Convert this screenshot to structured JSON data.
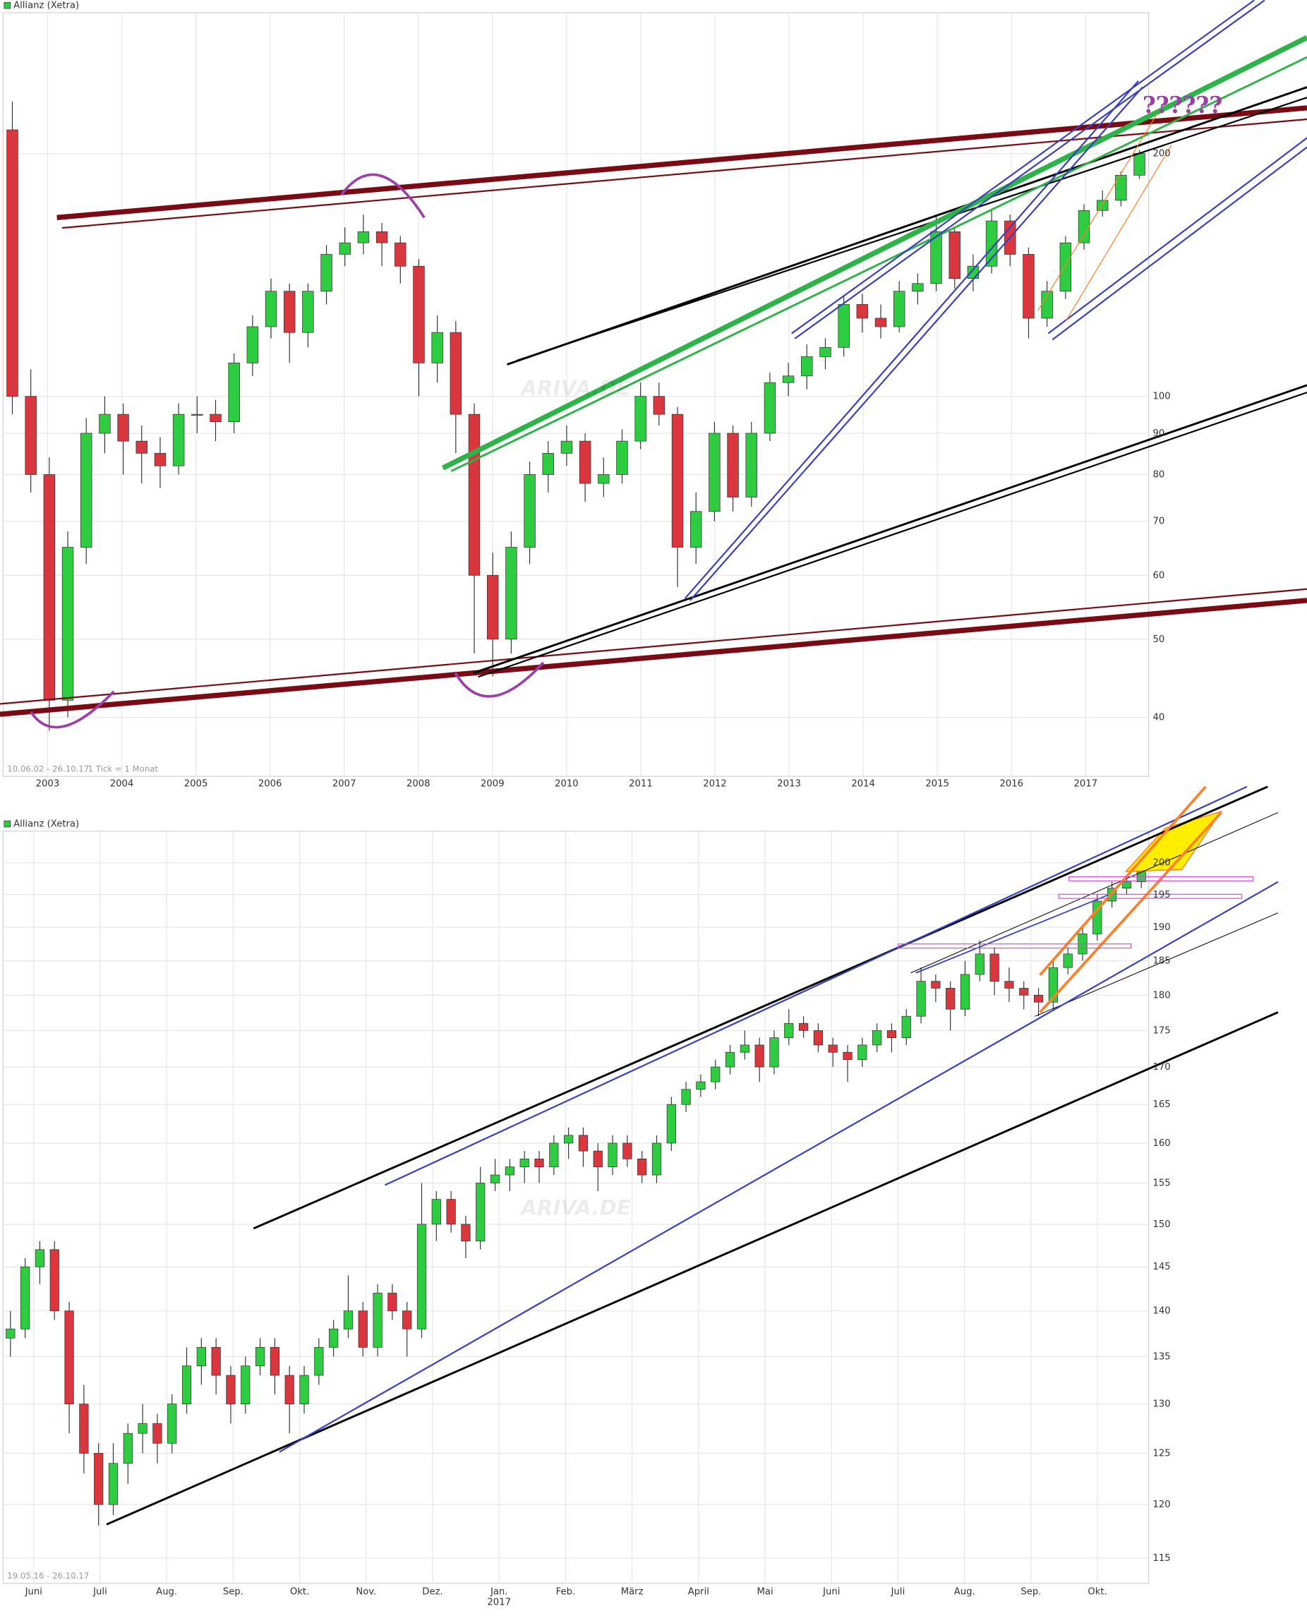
{
  "chart_data": [
    {
      "type": "candlestick",
      "series": [
        {
          "name": "Allianz (Xetra)",
          "color": "#2ecc40",
          "down_color": "#d9363e",
          "values": [
            [
              214,
              232,
              95,
              100
            ],
            [
              100,
              108,
              76,
              80
            ],
            [
              80,
              84,
              38.5,
              42
            ],
            [
              42,
              68,
              40,
              65
            ],
            [
              65,
              94,
              62,
              90
            ],
            [
              90,
              100,
              85,
              95
            ],
            [
              95,
              98,
              80,
              88
            ],
            [
              88,
              92,
              78,
              85
            ],
            [
              85,
              89,
              77,
              82
            ],
            [
              82,
              98,
              80,
              95
            ],
            [
              95,
              100,
              90,
              95
            ],
            [
              95,
              99,
              88,
              93
            ],
            [
              93,
              113,
              90,
              110
            ],
            [
              110,
              126,
              106,
              122
            ],
            [
              122,
              140,
              118,
              135
            ],
            [
              135,
              138,
              110,
              120
            ],
            [
              120,
              138,
              115,
              135
            ],
            [
              135,
              154,
              130,
              150
            ],
            [
              150,
              162,
              145,
              155
            ],
            [
              155,
              168,
              150,
              160
            ],
            [
              160,
              164,
              145,
              155
            ],
            [
              155,
              158,
              138,
              145
            ],
            [
              145,
              148,
              100,
              110
            ],
            [
              110,
              126,
              104,
              120
            ],
            [
              120,
              124,
              85,
              95
            ],
            [
              95,
              98,
              48,
              60
            ],
            [
              60,
              64,
              45,
              50
            ],
            [
              50,
              68,
              48,
              65
            ],
            [
              65,
              83,
              62,
              80
            ],
            [
              80,
              88,
              76,
              85
            ],
            [
              85,
              92,
              82,
              88
            ],
            [
              88,
              90,
              74,
              78
            ],
            [
              78,
              84,
              75,
              80
            ],
            [
              80,
              91,
              78,
              88
            ],
            [
              88,
              104,
              86,
              100
            ],
            [
              100,
              104,
              92,
              95
            ],
            [
              95,
              97,
              58,
              65
            ],
            [
              65,
              76,
              62,
              72
            ],
            [
              72,
              93,
              70,
              90
            ],
            [
              90,
              92,
              72,
              75
            ],
            [
              75,
              93,
              73,
              90
            ],
            [
              90,
              107,
              88,
              104
            ],
            [
              104,
              110,
              100,
              106
            ],
            [
              106,
              116,
              102,
              112
            ],
            [
              112,
              118,
              108,
              115
            ],
            [
              115,
              133,
              112,
              130
            ],
            [
              130,
              134,
              120,
              125
            ],
            [
              125,
              130,
              118,
              122
            ],
            [
              122,
              139,
              120,
              135
            ],
            [
              135,
              142,
              130,
              138
            ],
            [
              138,
              168,
              135,
              160
            ],
            [
              160,
              162,
              136,
              140
            ],
            [
              140,
              150,
              135,
              145
            ],
            [
              145,
              170,
              142,
              165
            ],
            [
              165,
              168,
              145,
              150
            ],
            [
              150,
              153,
              118,
              125
            ],
            [
              125,
              139,
              122,
              135
            ],
            [
              135,
              158,
              132,
              155
            ],
            [
              155,
              173,
              152,
              170
            ],
            [
              170,
              180,
              167,
              175
            ],
            [
              175,
              190,
              172,
              188
            ],
            [
              188,
              202,
              186,
              200
            ]
          ]
        }
      ],
      "xlim": [
        2002.4,
        2017.85
      ],
      "xticks": [
        2003,
        2004,
        2005,
        2006,
        2007,
        2008,
        2009,
        2010,
        2011,
        2012,
        2013,
        2014,
        2015,
        2016,
        2017
      ],
      "ylim": [
        33.8,
        299
      ],
      "yticks": [
        40,
        50,
        60,
        70,
        80,
        90,
        100,
        200
      ],
      "log_scale": true,
      "grid": true,
      "range_label": "10.06.02 - 26.10.17",
      "interval_label": "1 Tick = 1 Monat",
      "annotation": "??????",
      "watermark": "ARIVA.DE"
    },
    {
      "type": "candlestick",
      "series": [
        {
          "name": "Allianz (Xetra)",
          "color": "#2ecc40",
          "down_color": "#d9363e",
          "values": [
            [
              137,
              140,
              135,
              138
            ],
            [
              138,
              146,
              137,
              145
            ],
            [
              145,
              148,
              143,
              147
            ],
            [
              147,
              148,
              139,
              140
            ],
            [
              140,
              141,
              127,
              130
            ],
            [
              130,
              132,
              123,
              125
            ],
            [
              125,
              126,
              118,
              120
            ],
            [
              120,
              126,
              119,
              124
            ],
            [
              124,
              128,
              122,
              127
            ],
            [
              127,
              130,
              125,
              128
            ],
            [
              128,
              129,
              124,
              126
            ],
            [
              126,
              131,
              125,
              130
            ],
            [
              130,
              136,
              129,
              134
            ],
            [
              134,
              137,
              132,
              136
            ],
            [
              136,
              137,
              131,
              133
            ],
            [
              133,
              134,
              128,
              130
            ],
            [
              130,
              135,
              129,
              134
            ],
            [
              134,
              137,
              133,
              136
            ],
            [
              136,
              137,
              131,
              133
            ],
            [
              133,
              134,
              127,
              130
            ],
            [
              130,
              134,
              129,
              133
            ],
            [
              133,
              137,
              132,
              136
            ],
            [
              136,
              139,
              135,
              138
            ],
            [
              138,
              144,
              137,
              140
            ],
            [
              140,
              141,
              135,
              136
            ],
            [
              136,
              143,
              135,
              142
            ],
            [
              142,
              143,
              139,
              140
            ],
            [
              140,
              141,
              135,
              138
            ],
            [
              138,
              155,
              137,
              150
            ],
            [
              150,
              154,
              148,
              153
            ],
            [
              153,
              154,
              149,
              150
            ],
            [
              150,
              151,
              146,
              148
            ],
            [
              148,
              157,
              147,
              155
            ],
            [
              155,
              158,
              154,
              156
            ],
            [
              156,
              158,
              154,
              157
            ],
            [
              157,
              159,
              155,
              158
            ],
            [
              158,
              159,
              155,
              157
            ],
            [
              157,
              161,
              156,
              160
            ],
            [
              160,
              162,
              158,
              161
            ],
            [
              161,
              162,
              157,
              159
            ],
            [
              159,
              160,
              154,
              157
            ],
            [
              157,
              161,
              156,
              160
            ],
            [
              160,
              161,
              157,
              158
            ],
            [
              158,
              159,
              155,
              156
            ],
            [
              156,
              161,
              155,
              160
            ],
            [
              160,
              166,
              159,
              165
            ],
            [
              165,
              168,
              164,
              167
            ],
            [
              167,
              169,
              166,
              168
            ],
            [
              168,
              171,
              167,
              170
            ],
            [
              170,
              173,
              169,
              172
            ],
            [
              172,
              175,
              171,
              173
            ],
            [
              173,
              174,
              168,
              170
            ],
            [
              170,
              175,
              169,
              174
            ],
            [
              174,
              178,
              173,
              176
            ],
            [
              176,
              177,
              174,
              175
            ],
            [
              175,
              176,
              172,
              173
            ],
            [
              173,
              174,
              170,
              172
            ],
            [
              172,
              173,
              168,
              171
            ],
            [
              171,
              174,
              170,
              173
            ],
            [
              173,
              176,
              172,
              175
            ],
            [
              175,
              176,
              172,
              174
            ],
            [
              174,
              178,
              173,
              177
            ],
            [
              177,
              184,
              176,
              182
            ],
            [
              182,
              183,
              179,
              181
            ],
            [
              181,
              182,
              175,
              178
            ],
            [
              178,
              185,
              177,
              183
            ],
            [
              183,
              188,
              182,
              186
            ],
            [
              186,
              187,
              180,
              182
            ],
            [
              182,
              184,
              179,
              181
            ],
            [
              181,
              182,
              178,
              180
            ],
            [
              180,
              181,
              177,
              179
            ],
            [
              179,
              185,
              178,
              184
            ],
            [
              184,
              187,
              183,
              186
            ],
            [
              186,
              190,
              185,
              189
            ],
            [
              189,
              195,
              188,
              194
            ],
            [
              194,
              197,
              193,
              196
            ],
            [
              196,
              198,
              195,
              197
            ],
            [
              197,
              201,
              196,
              200
            ]
          ]
        }
      ],
      "categories": [
        "Juni",
        "Juli",
        "Aug.",
        "Sep.",
        "Okt.",
        "Nov.",
        "Dez.",
        "Jan.",
        "Feb.",
        "März",
        "April",
        "Mai",
        "Juni",
        "Juli",
        "Aug.",
        "Sep.",
        "Okt."
      ],
      "year_label": "2017",
      "ylim": [
        112.7,
        205.1
      ],
      "yticks": [
        115,
        120,
        125,
        130,
        135,
        140,
        145,
        150,
        155,
        160,
        165,
        170,
        175,
        180,
        185,
        190,
        195,
        200
      ],
      "log_scale": true,
      "grid": true,
      "range_label": "19.05.16 - 26.10.17",
      "watermark": "ARIVA.DE"
    }
  ]
}
